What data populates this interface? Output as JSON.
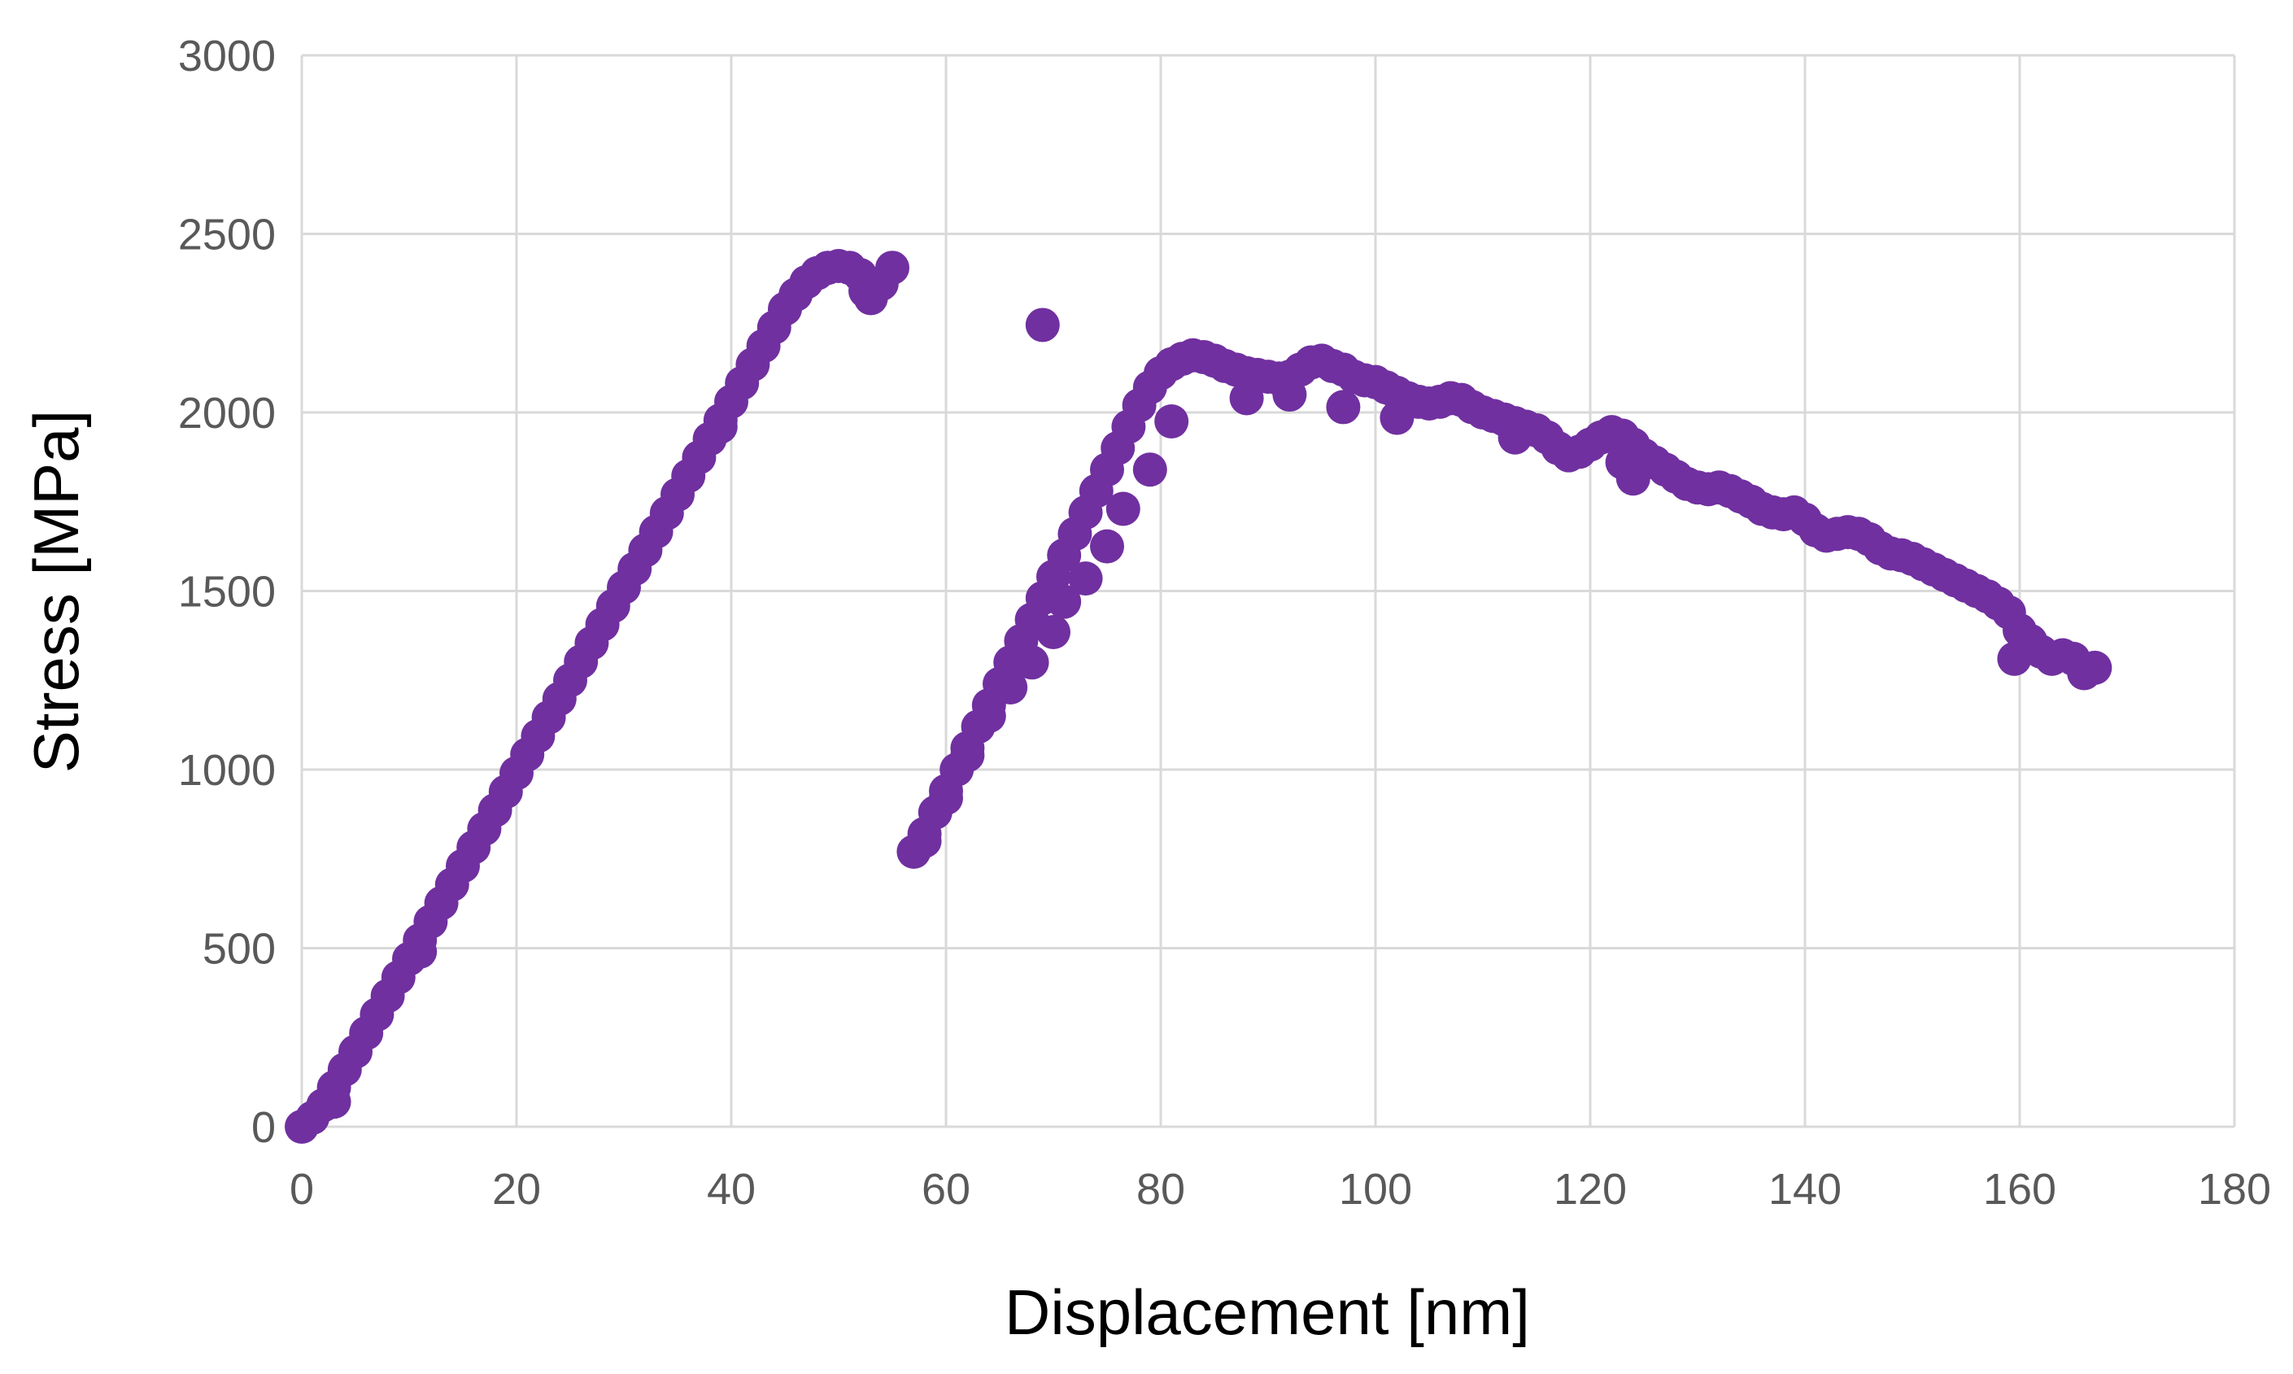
{
  "chart_data": {
    "type": "scatter",
    "title": "",
    "xlabel": "Displacement [nm]",
    "ylabel": "Stress [MPa]",
    "xlim": [
      0,
      180
    ],
    "ylim": [
      0,
      3000
    ],
    "x_ticks": [
      "0",
      "20",
      "40",
      "60",
      "80",
      "100",
      "120",
      "140",
      "160",
      "180"
    ],
    "y_ticks": [
      "0",
      "500",
      "1000",
      "1500",
      "2000",
      "2500",
      "3000"
    ],
    "grid": true,
    "marker_color": "#7030a0",
    "series": [
      {
        "points": [
          [
            0.0,
            0
          ],
          [
            1.0,
            25
          ],
          [
            2.0,
            60
          ],
          [
            3.0,
            110
          ],
          [
            4.0,
            160
          ],
          [
            5.0,
            210
          ],
          [
            6.0,
            262
          ],
          [
            7.0,
            314
          ],
          [
            8.0,
            366
          ],
          [
            9.0,
            418
          ],
          [
            10.0,
            470
          ],
          [
            11.0,
            522
          ],
          [
            12.0,
            574
          ],
          [
            13.0,
            626
          ],
          [
            14.0,
            678
          ],
          [
            15.0,
            730
          ],
          [
            16.0,
            782
          ],
          [
            17.0,
            834
          ],
          [
            18.0,
            886
          ],
          [
            19.0,
            938
          ],
          [
            20.0,
            990
          ],
          [
            21.0,
            1042
          ],
          [
            22.0,
            1094
          ],
          [
            23.0,
            1146
          ],
          [
            24.0,
            1198
          ],
          [
            25.0,
            1250
          ],
          [
            26.0,
            1302
          ],
          [
            27.0,
            1354
          ],
          [
            28.0,
            1406
          ],
          [
            29.0,
            1458
          ],
          [
            30.0,
            1510
          ],
          [
            31.0,
            1562
          ],
          [
            32.0,
            1614
          ],
          [
            33.0,
            1666
          ],
          [
            34.0,
            1718
          ],
          [
            35.0,
            1770
          ],
          [
            36.0,
            1822
          ],
          [
            37.0,
            1874
          ],
          [
            38.0,
            1926
          ],
          [
            39.0,
            1978
          ],
          [
            40.0,
            2030
          ],
          [
            41.0,
            2082
          ],
          [
            42.0,
            2134
          ],
          [
            43.0,
            2186
          ],
          [
            44.0,
            2238
          ],
          [
            45.0,
            2290
          ],
          [
            46.0,
            2330
          ],
          [
            47.0,
            2365
          ],
          [
            48.0,
            2390
          ],
          [
            49.0,
            2405
          ],
          [
            50.0,
            2410
          ],
          [
            51.0,
            2405
          ],
          [
            52.0,
            2385
          ],
          [
            52.5,
            2340
          ],
          [
            53.0,
            2320
          ],
          [
            54.0,
            2360
          ],
          [
            55.0,
            2405
          ],
          [
            69.0,
            2245
          ],
          [
            57.0,
            770
          ],
          [
            58.0,
            820
          ],
          [
            59.0,
            880
          ],
          [
            60.0,
            940
          ],
          [
            61.0,
            1000
          ],
          [
            62.0,
            1060
          ],
          [
            63.0,
            1120
          ],
          [
            64.0,
            1180
          ],
          [
            65.0,
            1240
          ],
          [
            66.0,
            1300
          ],
          [
            67.0,
            1360
          ],
          [
            68.0,
            1420
          ],
          [
            69.0,
            1480
          ],
          [
            70.0,
            1540
          ],
          [
            71.0,
            1600
          ],
          [
            72.0,
            1660
          ],
          [
            73.0,
            1720
          ],
          [
            74.0,
            1780
          ],
          [
            75.0,
            1840
          ],
          [
            76.0,
            1900
          ],
          [
            77.0,
            1960
          ],
          [
            78.0,
            2020
          ],
          [
            79.0,
            2070
          ],
          [
            80.0,
            2110
          ],
          [
            81.0,
            2135
          ],
          [
            82.0,
            2150
          ],
          [
            83.0,
            2160
          ],
          [
            84.0,
            2155
          ],
          [
            85.0,
            2145
          ],
          [
            86.0,
            2130
          ],
          [
            87.0,
            2120
          ],
          [
            88.0,
            2110
          ],
          [
            89.0,
            2105
          ],
          [
            90.0,
            2100
          ],
          [
            91.0,
            2095
          ],
          [
            92.0,
            2100
          ],
          [
            93.0,
            2120
          ],
          [
            94.0,
            2140
          ],
          [
            95.0,
            2145
          ],
          [
            96.0,
            2130
          ],
          [
            97.0,
            2120
          ],
          [
            98.0,
            2100
          ],
          [
            99.0,
            2090
          ],
          [
            100.0,
            2085
          ],
          [
            101.0,
            2070
          ],
          [
            102.0,
            2055
          ],
          [
            103.0,
            2040
          ],
          [
            104.0,
            2030
          ],
          [
            105.0,
            2025
          ],
          [
            106.0,
            2030
          ],
          [
            107.0,
            2040
          ],
          [
            108.0,
            2035
          ],
          [
            109.0,
            2015
          ],
          [
            110.0,
            2000
          ],
          [
            111.0,
            1990
          ],
          [
            112.0,
            1980
          ],
          [
            113.0,
            1970
          ],
          [
            114.0,
            1960
          ],
          [
            115.0,
            1950
          ],
          [
            116.0,
            1930
          ],
          [
            117.0,
            1900
          ],
          [
            118.0,
            1880
          ],
          [
            119.0,
            1890
          ],
          [
            120.0,
            1910
          ],
          [
            121.0,
            1930
          ],
          [
            122.0,
            1945
          ],
          [
            123.0,
            1935
          ],
          [
            124.0,
            1910
          ],
          [
            125.0,
            1880
          ],
          [
            126.0,
            1860
          ],
          [
            127.0,
            1840
          ],
          [
            128.0,
            1820
          ],
          [
            129.0,
            1800
          ],
          [
            130.0,
            1790
          ],
          [
            131.0,
            1785
          ],
          [
            132.0,
            1790
          ],
          [
            133.0,
            1780
          ],
          [
            134.0,
            1765
          ],
          [
            135.0,
            1750
          ],
          [
            136.0,
            1730
          ],
          [
            137.0,
            1720
          ],
          [
            138.0,
            1715
          ],
          [
            139.0,
            1720
          ],
          [
            140.0,
            1700
          ],
          [
            141.0,
            1670
          ],
          [
            142.0,
            1655
          ],
          [
            143.0,
            1660
          ],
          [
            144.0,
            1665
          ],
          [
            145.0,
            1660
          ],
          [
            146.0,
            1645
          ],
          [
            147.0,
            1620
          ],
          [
            148.0,
            1605
          ],
          [
            149.0,
            1600
          ],
          [
            150.0,
            1590
          ],
          [
            151.0,
            1575
          ],
          [
            152.0,
            1560
          ],
          [
            153.0,
            1545
          ],
          [
            154.0,
            1530
          ],
          [
            155.0,
            1515
          ],
          [
            156.0,
            1500
          ],
          [
            157.0,
            1485
          ],
          [
            158.0,
            1465
          ],
          [
            159.0,
            1440
          ],
          [
            159.5,
            1310
          ],
          [
            160.0,
            1390
          ],
          [
            161.0,
            1360
          ],
          [
            162.0,
            1330
          ],
          [
            163.0,
            1310
          ],
          [
            164.0,
            1320
          ],
          [
            165.0,
            1310
          ],
          [
            166.0,
            1270
          ],
          [
            167.0,
            1285
          ],
          [
            3.0,
            70
          ],
          [
            11.0,
            490
          ],
          [
            39.0,
            1960
          ],
          [
            53.0,
            2330
          ],
          [
            88.0,
            2040
          ],
          [
            92.0,
            2050
          ],
          [
            97.0,
            2015
          ],
          [
            102.0,
            1985
          ],
          [
            113.0,
            1930
          ],
          [
            124.0,
            1815
          ],
          [
            123.0,
            1860
          ],
          [
            71.0,
            1470
          ],
          [
            73.0,
            1535
          ],
          [
            75.0,
            1625
          ],
          [
            76.5,
            1730
          ],
          [
            79.0,
            1840
          ],
          [
            81.0,
            1975
          ],
          [
            70.0,
            1385
          ],
          [
            68.0,
            1300
          ],
          [
            66.0,
            1230
          ],
          [
            64.0,
            1150
          ],
          [
            62.0,
            1040
          ],
          [
            60.0,
            920
          ],
          [
            58.0,
            800
          ]
        ]
      }
    ]
  }
}
